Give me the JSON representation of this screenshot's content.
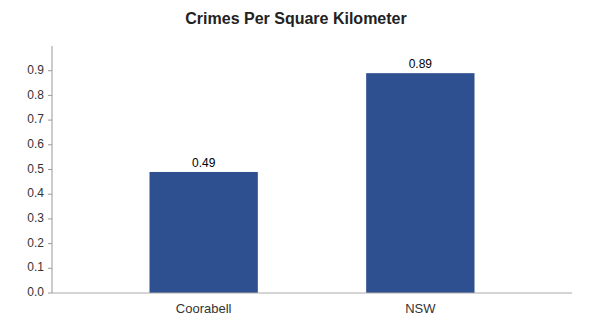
{
  "chart_data": {
    "type": "bar",
    "title": "Crimes Per Square Kilometer",
    "categories": [
      "Coorabell",
      "NSW"
    ],
    "values": [
      0.49,
      0.89
    ],
    "color": "#2e5090",
    "ylim": [
      0,
      1.0
    ],
    "yticks": [
      {
        "value": 0,
        "label": "0.0"
      },
      0.1,
      0.2,
      0.3,
      0.4,
      0.5,
      0.6,
      0.7,
      0.8,
      0.9
    ],
    "grid": false,
    "data_labels": true
  }
}
